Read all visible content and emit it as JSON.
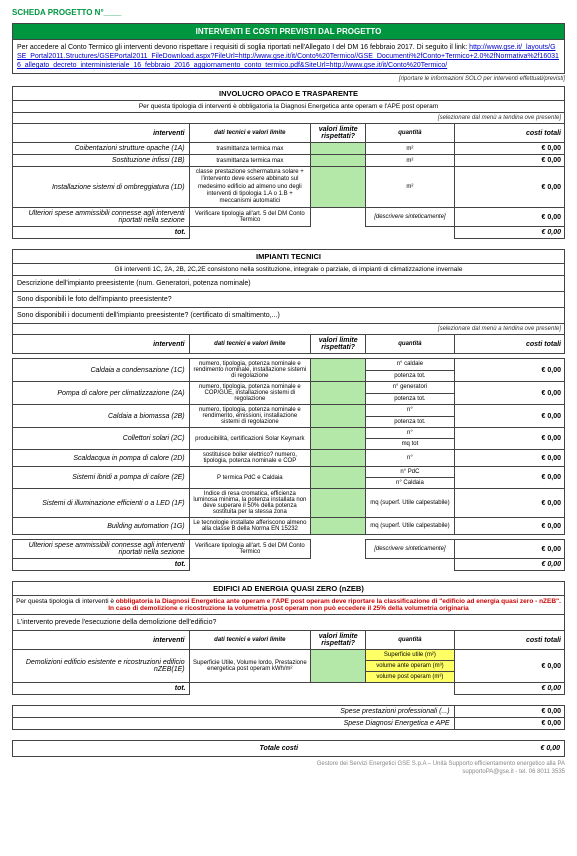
{
  "header": "SCHEDA PROGETTO N°____",
  "main_title": "INTERVENTI E COSTI PREVISTI DAL PROGETTO",
  "intro": {
    "text": "Per accedere al Conto Termico gli interventi devono rispettare i requisiti di soglia riportati nell'Allegato I del DM 16 febbraio 2017. Di seguito il link:",
    "link1": "http://www.gse.it/_layouts/GSE_Portal2011.Structures/GSEPortal2011_FileDownload.aspx?FileUrl=http://www.gse.it/it/Conto%20Termico//GSE_Documenti%2fConto+Termico+2.0%2fNormativa%2f160316_allegato_decreto_interministeriale_16_febbraio_2016_aggiornamento_conto_termico.pdf&SiteUrl=http://www.gse.it/it/Conto%20Termico/"
  },
  "note_effettuati": "[riportare le informazioni SOLO per interventi effettuati/previsti]",
  "note_tendina": "[selezionare dal menù a tendina ove presente]",
  "zero": "€ 0,00",
  "headers": {
    "interventi": "interventi",
    "dati": "dati tecnici e valori limite",
    "valori": "valori limite rispettati?",
    "quantita": "quantità",
    "costi": "costi totali"
  },
  "sec1": {
    "title": "INVOLUCRO OPACO E TRASPARENTE",
    "desc": "Per questa tipologia di interventi è obbligatoria la Diagnosi Energetica ante operam e l'APE post operam",
    "rows": [
      {
        "int": "Coibentazioni strutture opache (1A)",
        "dati": "trasmittanza termica max",
        "q": "m²"
      },
      {
        "int": "Sostituzione infissi (1B)",
        "dati": "trasmittanza termica max",
        "q": "m²"
      },
      {
        "int": "Installazione sistemi di ombreggiatura (1D)",
        "dati": "classe prestazione schermatura solare + l'intervento deve essere abbinato sul medesimo edificio ad almeno uno degli interventi di tipologia 1.A o 1.B + meccanismi automatici",
        "q": "m²"
      }
    ],
    "ult": "Ulteriori spese ammissibili connesse agli interventi riportati nella sezione",
    "ult_dati": "Verificare tipologia all'art. 5 del DM Conto Termico",
    "ult_q": "[descrivere sinteticamente]",
    "tot": "tot."
  },
  "sec2": {
    "title": "IMPIANTI TECNICI",
    "desc": "Gli interventi 1C, 2A, 2B, 2C,2E consistono nella sostituzione, integrale o parziale, di impianti di climatizzazione invernale",
    "q1": "Descrizione dell'impianto preesistente (num. Generatori, potenza nominale)",
    "q2": "Sono disponibili le foto dell'impianto preesistente?",
    "q3": "Sono disponibili i documenti dell'impianto preesistente? (certificato di smaltimento,...)",
    "rows": [
      {
        "int": "Caldaia a condensazione (1C)",
        "dati": "numero, tipologia, potenza nominale e rendimento nominale, installazione sistemi di regolazione",
        "q": [
          "n° caldaie",
          "potenza tot."
        ]
      },
      {
        "int": "Pompa di calore per climatizzazione (2A)",
        "dati": "numero, tipologia, potenza nominale e COP/GUE, installazione sistemi di regolazione",
        "q": [
          "n° generatori",
          "potenza tot."
        ]
      },
      {
        "int": "Caldaia a biomassa (2B)",
        "dati": "numero, tipologia, potenza nominale e rendimento, emissioni, installazione sistemi di regolazione",
        "q": [
          "n°",
          "potenza tot."
        ]
      },
      {
        "int": "Collettori solari (2C)",
        "dati": "producibilità, certificazioni Solar Keymark",
        "q": [
          "n°",
          "mq tot"
        ]
      },
      {
        "int": "Scaldacqua in pompa di calore (2D)",
        "dati": "sostituisce boiler elettrico? numero, tipologia, potenza nominale e COP",
        "q": [
          "n°"
        ]
      },
      {
        "int": "Sistemi ibridi a pompa di calore (2E)",
        "dati": "P termica PdC e Caldaia",
        "q": [
          "n° PdC",
          "n° Caldaia"
        ]
      },
      {
        "int": "Sistemi di illuminazione efficienti o a LED (1F)",
        "dati": "Indice di resa cromatica, efficienza luminosa minima, la potenza installata non deve superare il 50% della potenza sostituita per la stessa zona",
        "q": [
          "mq (superf. Utile calpestabile)"
        ]
      },
      {
        "int": "Building automation (1G)",
        "dati": "Le tecnologie installate afferiscono almeno alla classe B della Norma EN 15232",
        "q": [
          "mq (superf. Utile calpestabile)"
        ]
      }
    ],
    "ult": "Ulteriori spese ammissibili connesse agli interventi riportati nella sezione",
    "ult_dati": "Verificare tipologia all'art. 5 del DM Conto Termico",
    "ult_q": "[descrivere sinteticamente]",
    "tot": "tot."
  },
  "sec3": {
    "title": "EDIFICI AD ENERGIA QUASI ZERO (nZEB)",
    "desc1": "Per questa tipologia di interventi è ",
    "desc_red": "obbligatoria la Diagnosi Energetica ante operam e l'APE post operam deve riportare la classificazione di \"edificio ad energia quasi zero - nZEB\". In caso di demolizione e ricostruzione la volumetria post operam non può eccedere il 25% della volumetria originaria",
    "q1": "L'intervento prevede l'esecuzione della demolizione dell'edificio?",
    "row": {
      "int": "Demolizioni edificio esistente e ricostruzioni edificio nZEB(1E)",
      "dati": "Superficie Utile, Volume lordo, Prestazione energetica post operam kWh/m²",
      "q": [
        "Superficie utile (m²)",
        "volume ante operam (m³)",
        "volume post operam (m³)"
      ]
    },
    "tot": "tot.",
    "sp1": "Spese prestazioni professionali (...)",
    "sp2": "Spese Diagnosi Energetica e APE"
  },
  "totale": "Totale costi",
  "footer": {
    "l1": "Gestore dei Servizi Energetici GSE S.p.A – Unità Supporto efficientamento energetico alla PA",
    "l2": "supportoPA@gse.it - tel. 06 8011 3535"
  }
}
